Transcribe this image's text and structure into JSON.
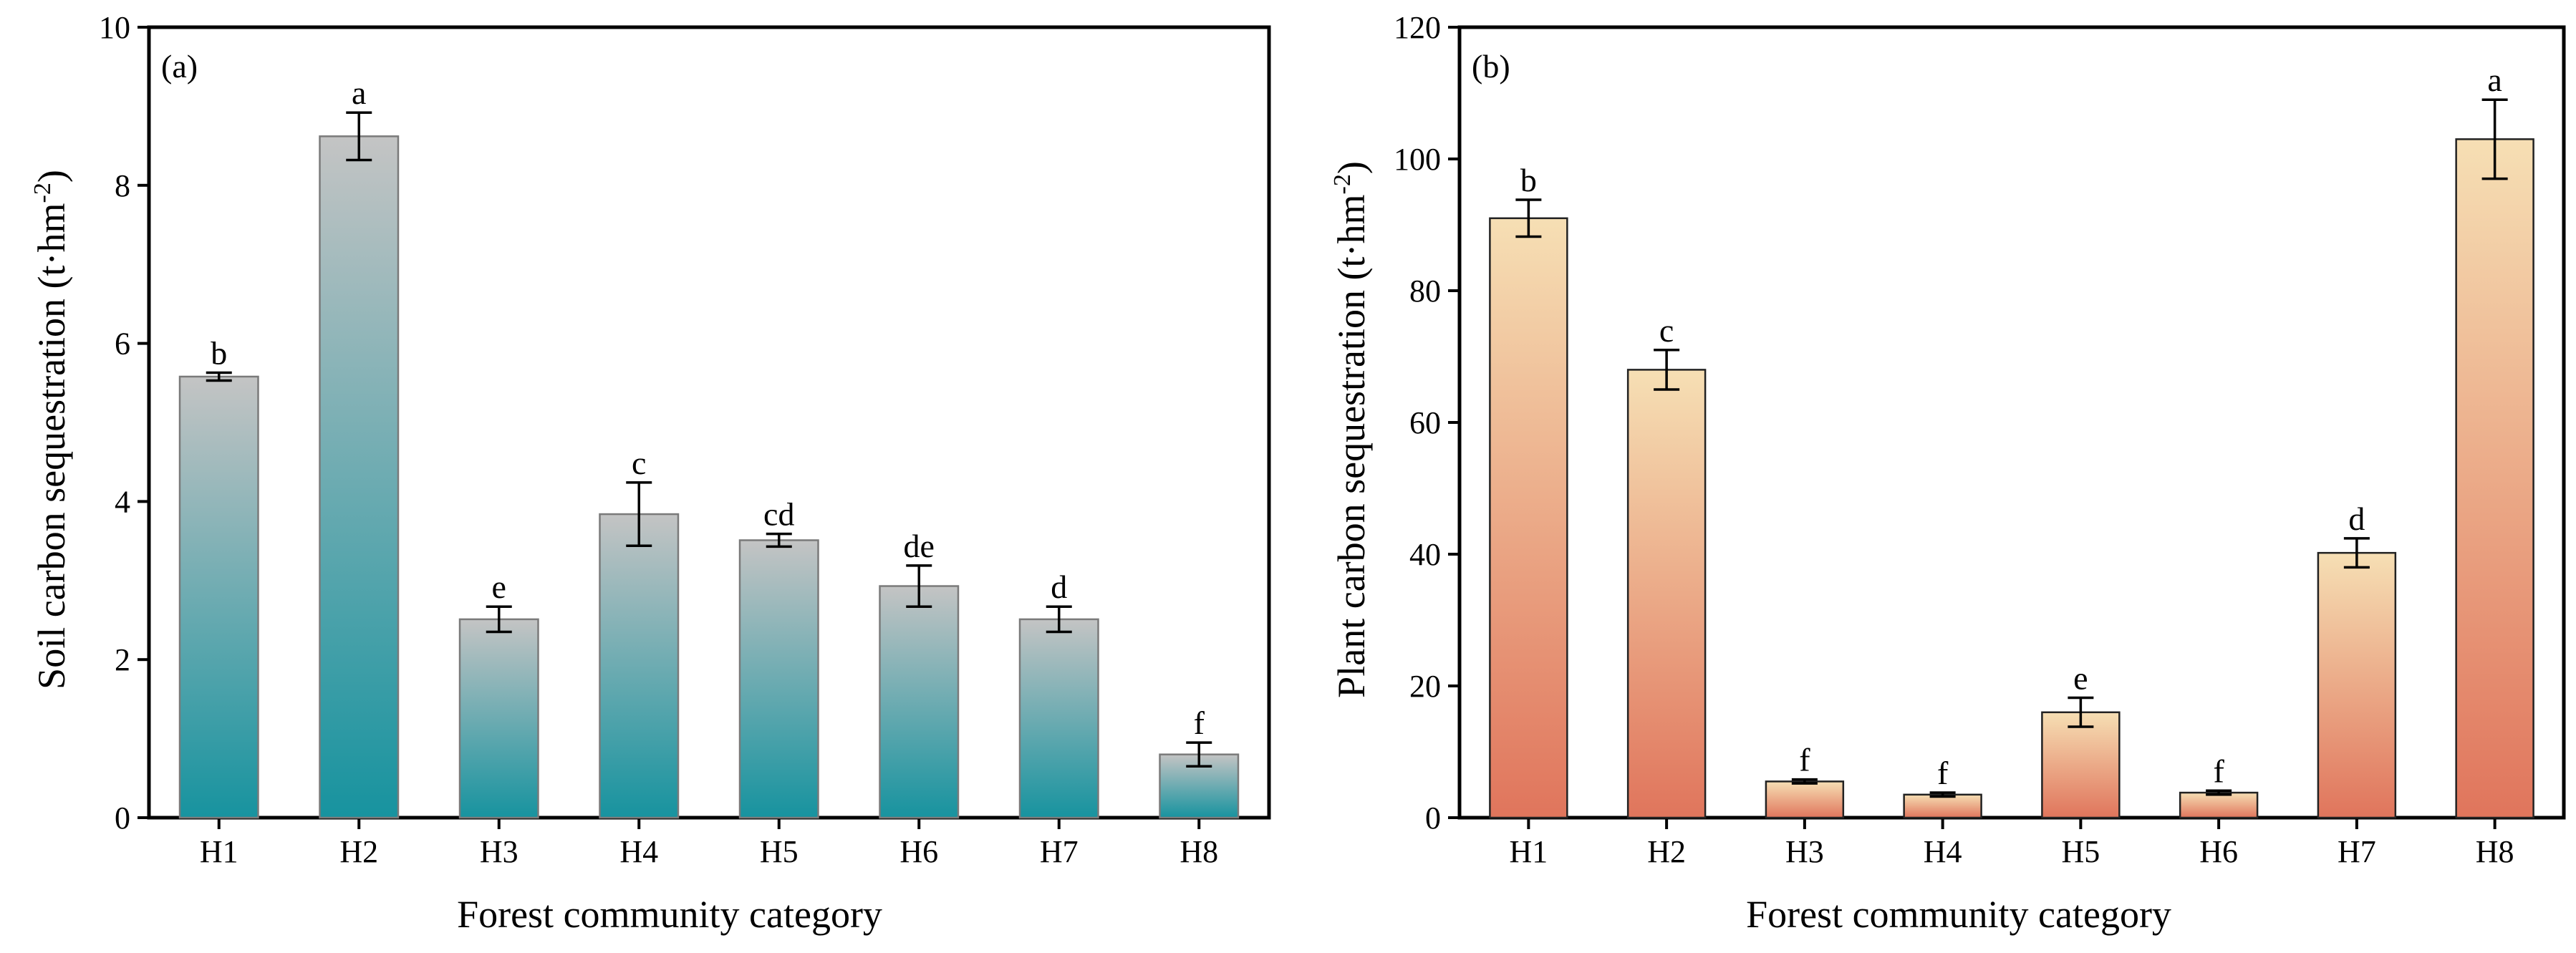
{
  "chart_data": [
    {
      "type": "bar",
      "panel_label": "(a)",
      "categories": [
        "H1",
        "H2",
        "H3",
        "H4",
        "H5",
        "H6",
        "H7",
        "H8"
      ],
      "values": [
        5.58,
        8.62,
        2.51,
        3.84,
        3.51,
        2.93,
        2.51,
        0.8
      ],
      "errors": [
        0.05,
        0.3,
        0.16,
        0.4,
        0.08,
        0.26,
        0.16,
        0.15
      ],
      "significance": [
        "b",
        "a",
        "e",
        "c",
        "cd",
        "de",
        "d",
        "f"
      ],
      "xlabel": "Forest community category",
      "ylabel_main": "Soil carbon sequestration (t·hm",
      "ylabel_sup": "-2",
      "ylabel_end": ")",
      "ylim": [
        0,
        10
      ],
      "yticks": [
        0,
        2,
        4,
        6,
        8,
        10
      ],
      "grid": false,
      "colors": {
        "top": "#c4c4c4",
        "bottom": "#17939f",
        "edge": "#7a7a7a"
      }
    },
    {
      "type": "bar",
      "panel_label": "(b)",
      "categories": [
        "H1",
        "H2",
        "H3",
        "H4",
        "H5",
        "H6",
        "H7",
        "H8"
      ],
      "values": [
        91,
        68,
        5.5,
        3.5,
        16,
        3.8,
        40.2,
        103
      ],
      "errors": [
        2.8,
        3.0,
        0.3,
        0.3,
        2.2,
        0.3,
        2.2,
        6.0
      ],
      "significance": [
        "b",
        "c",
        "f",
        "f",
        "e",
        "f",
        "d",
        "a"
      ],
      "xlabel": "Forest community category",
      "ylabel_main": "Plant carbon sequestration (t·hm",
      "ylabel_sup": "-2",
      "ylabel_end": ")",
      "ylim": [
        0,
        120
      ],
      "yticks": [
        0,
        20,
        40,
        60,
        80,
        100,
        120
      ],
      "grid": false,
      "colors": {
        "top": "#f6dfb4",
        "bottom": "#e0755c",
        "edge": "#222222"
      }
    }
  ]
}
